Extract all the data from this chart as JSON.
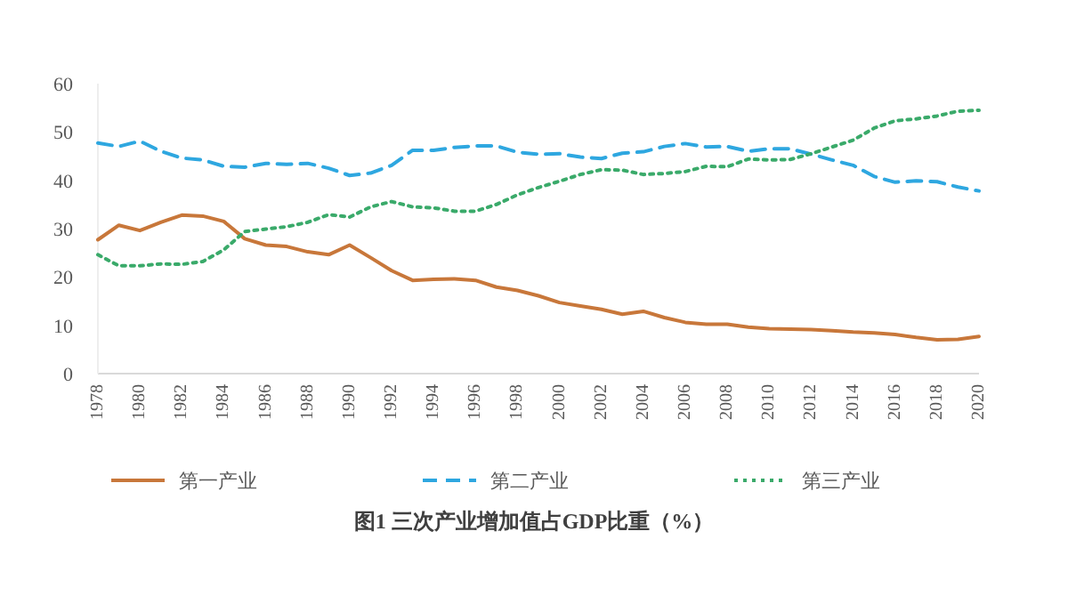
{
  "chart_data": {
    "type": "line",
    "title": "图1 三次产业增加值占GDP比重（%）",
    "x": [
      1978,
      1979,
      1980,
      1981,
      1982,
      1983,
      1984,
      1985,
      1986,
      1987,
      1988,
      1989,
      1990,
      1991,
      1992,
      1993,
      1994,
      1995,
      1996,
      1997,
      1998,
      1999,
      2000,
      2001,
      2002,
      2003,
      2004,
      2005,
      2006,
      2007,
      2008,
      2009,
      2010,
      2011,
      2012,
      2013,
      2014,
      2015,
      2016,
      2017,
      2018,
      2019,
      2020
    ],
    "series": [
      {
        "name": "第一产业",
        "color": "#c8773a",
        "line_style": "solid",
        "values": [
          27.7,
          30.7,
          29.6,
          31.3,
          32.8,
          32.6,
          31.5,
          27.9,
          26.6,
          26.3,
          25.2,
          24.6,
          26.6,
          24.0,
          21.3,
          19.3,
          19.5,
          19.6,
          19.3,
          17.9,
          17.2,
          16.1,
          14.7,
          14.0,
          13.3,
          12.3,
          12.9,
          11.6,
          10.6,
          10.2,
          10.2,
          9.6,
          9.3,
          9.2,
          9.1,
          8.9,
          8.6,
          8.4,
          8.1,
          7.5,
          7.0,
          7.1,
          7.7
        ]
      },
      {
        "name": "第二产业",
        "color": "#2ea7e0",
        "line_style": "dashed",
        "values": [
          47.7,
          47.0,
          48.1,
          46.0,
          44.6,
          44.2,
          42.9,
          42.7,
          43.5,
          43.3,
          43.5,
          42.5,
          41.0,
          41.5,
          43.1,
          46.2,
          46.2,
          46.8,
          47.1,
          47.1,
          45.8,
          45.4,
          45.5,
          44.8,
          44.5,
          45.6,
          45.9,
          47.0,
          47.6,
          46.9,
          47.0,
          46.0,
          46.5,
          46.5,
          45.4,
          44.2,
          43.1,
          40.8,
          39.6,
          39.9,
          39.7,
          38.6,
          37.8
        ]
      },
      {
        "name": "第三产业",
        "color": "#3aaa6a",
        "line_style": "dotted",
        "values": [
          24.6,
          22.3,
          22.3,
          22.7,
          22.6,
          23.2,
          25.6,
          29.4,
          29.9,
          30.4,
          31.3,
          32.9,
          32.4,
          34.5,
          35.6,
          34.5,
          34.3,
          33.6,
          33.6,
          35.0,
          37.0,
          38.5,
          39.8,
          41.2,
          42.2,
          42.1,
          41.2,
          41.4,
          41.8,
          42.9,
          42.8,
          44.4,
          44.2,
          44.3,
          45.5,
          46.9,
          48.3,
          50.8,
          52.3,
          52.7,
          53.3,
          54.3,
          54.5
        ]
      }
    ],
    "xlim": [
      1978,
      2020
    ],
    "xticks": [
      1978,
      1980,
      1982,
      1984,
      1986,
      1988,
      1990,
      1992,
      1994,
      1996,
      1998,
      2000,
      2002,
      2004,
      2006,
      2008,
      2010,
      2012,
      2014,
      2016,
      2018,
      2020
    ],
    "ylim": [
      0,
      60
    ],
    "yticks": [
      0,
      10,
      20,
      30,
      40,
      50,
      60
    ],
    "grid": false,
    "legend": "bottom"
  }
}
